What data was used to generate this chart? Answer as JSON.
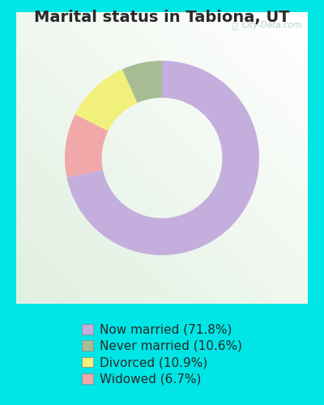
{
  "title": "Marital status in Tabiona, UT",
  "slices": [
    71.8,
    10.6,
    10.9,
    6.7
  ],
  "labels": [
    "Now married (71.8%)",
    "Widowed (6.7%)",
    "Divorced (10.9%)",
    "Never married (10.6%)"
  ],
  "legend_order": [
    0,
    3,
    2,
    1
  ],
  "colors": [
    "#c4aedd",
    "#f0a8a8",
    "#f0f07a",
    "#a8bc94"
  ],
  "bg_cyan": "#00e5e5",
  "watermark": "City-Data.com",
  "donut_width": 0.38,
  "startangle": 90,
  "title_fontsize": 14,
  "legend_fontsize": 11,
  "title_color": "#2a2a2a"
}
